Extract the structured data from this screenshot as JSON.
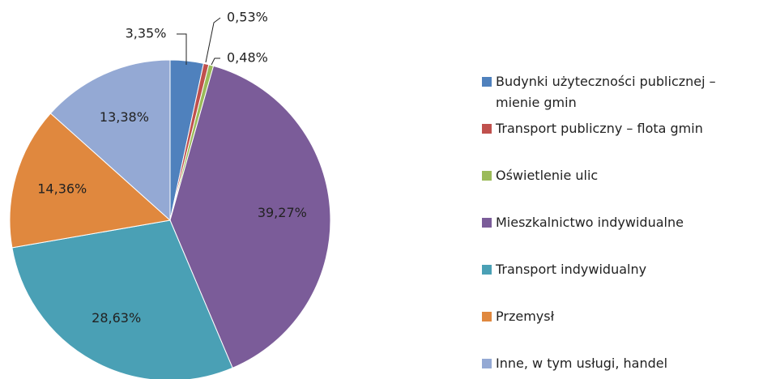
{
  "chart_data": {
    "type": "pie",
    "categories": [
      "Budynki użyteczności publicznej – mienie gmin",
      "Transport publiczny – flota gmin",
      "Oświetlenie ulic",
      "Mieszkalnictwo indywidualne",
      "Transport indywidualny",
      "Przemysł",
      "Inne, w tym usługi, handel"
    ],
    "values": [
      3.35,
      0.53,
      0.48,
      39.27,
      28.63,
      14.36,
      13.38
    ],
    "value_labels": [
      "3,35%",
      "0,53%",
      "0,48%",
      "39,27%",
      "28,63%",
      "14,36%",
      "13,38%"
    ],
    "colors": [
      "#4f81bd",
      "#c0504d",
      "#9bbb59",
      "#7b5c99",
      "#4aa0b5",
      "#e0883e",
      "#94a9d4"
    ],
    "legend": "right"
  }
}
